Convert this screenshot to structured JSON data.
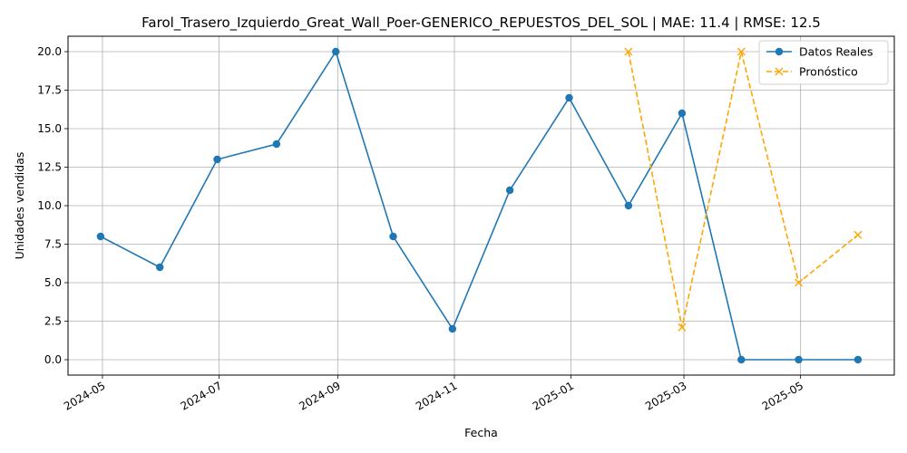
{
  "chart_data": {
    "type": "line",
    "title": "Farol_Trasero_Izquierdo_Great_Wall_Poer-GENERICO_REPUESTOS_DEL_SOL | MAE: 11.4 | RMSE: 12.5",
    "xlabel": "Fecha",
    "ylabel": "Unidades vendidas",
    "x_tick_labels": [
      "2024-05",
      "2024-07",
      "2024-09",
      "2024-11",
      "2025-01",
      "2025-03",
      "2025-05"
    ],
    "y_tick_labels": [
      "0.0",
      "2.5",
      "5.0",
      "7.5",
      "10.0",
      "12.5",
      "15.0",
      "17.5",
      "20.0"
    ],
    "y_ticks": [
      0,
      2.5,
      5,
      7.5,
      10,
      12.5,
      15,
      17.5,
      20
    ],
    "x_ticks": [
      "2024-05-01",
      "2024-07-01",
      "2024-09-01",
      "2024-11-01",
      "2025-01-01",
      "2025-03-01",
      "2025-05-01"
    ],
    "xlim": [
      "2024-04-13",
      "2025-06-19"
    ],
    "ylim": [
      -1,
      21
    ],
    "grid": true,
    "legend_position": "top-right",
    "series": [
      {
        "name": "Datos Reales",
        "color": "#1f77b4",
        "style": "solid",
        "marker": "circle",
        "x": [
          "2024-04-30",
          "2024-05-31",
          "2024-06-30",
          "2024-07-31",
          "2024-08-31",
          "2024-09-30",
          "2024-10-31",
          "2024-11-30",
          "2024-12-31",
          "2025-01-31",
          "2025-02-28",
          "2025-03-31",
          "2025-04-30",
          "2025-05-31"
        ],
        "values": [
          8,
          6,
          13,
          14,
          20,
          8,
          2,
          11,
          17,
          10,
          16,
          0,
          0,
          0
        ]
      },
      {
        "name": "Pronóstico",
        "color": "#ffa500",
        "style": "dashed",
        "marker": "x",
        "x": [
          "2025-01-31",
          "2025-02-28",
          "2025-03-31",
          "2025-04-30",
          "2025-05-31"
        ],
        "values": [
          20,
          2.1,
          20,
          5,
          8.1
        ]
      }
    ]
  }
}
